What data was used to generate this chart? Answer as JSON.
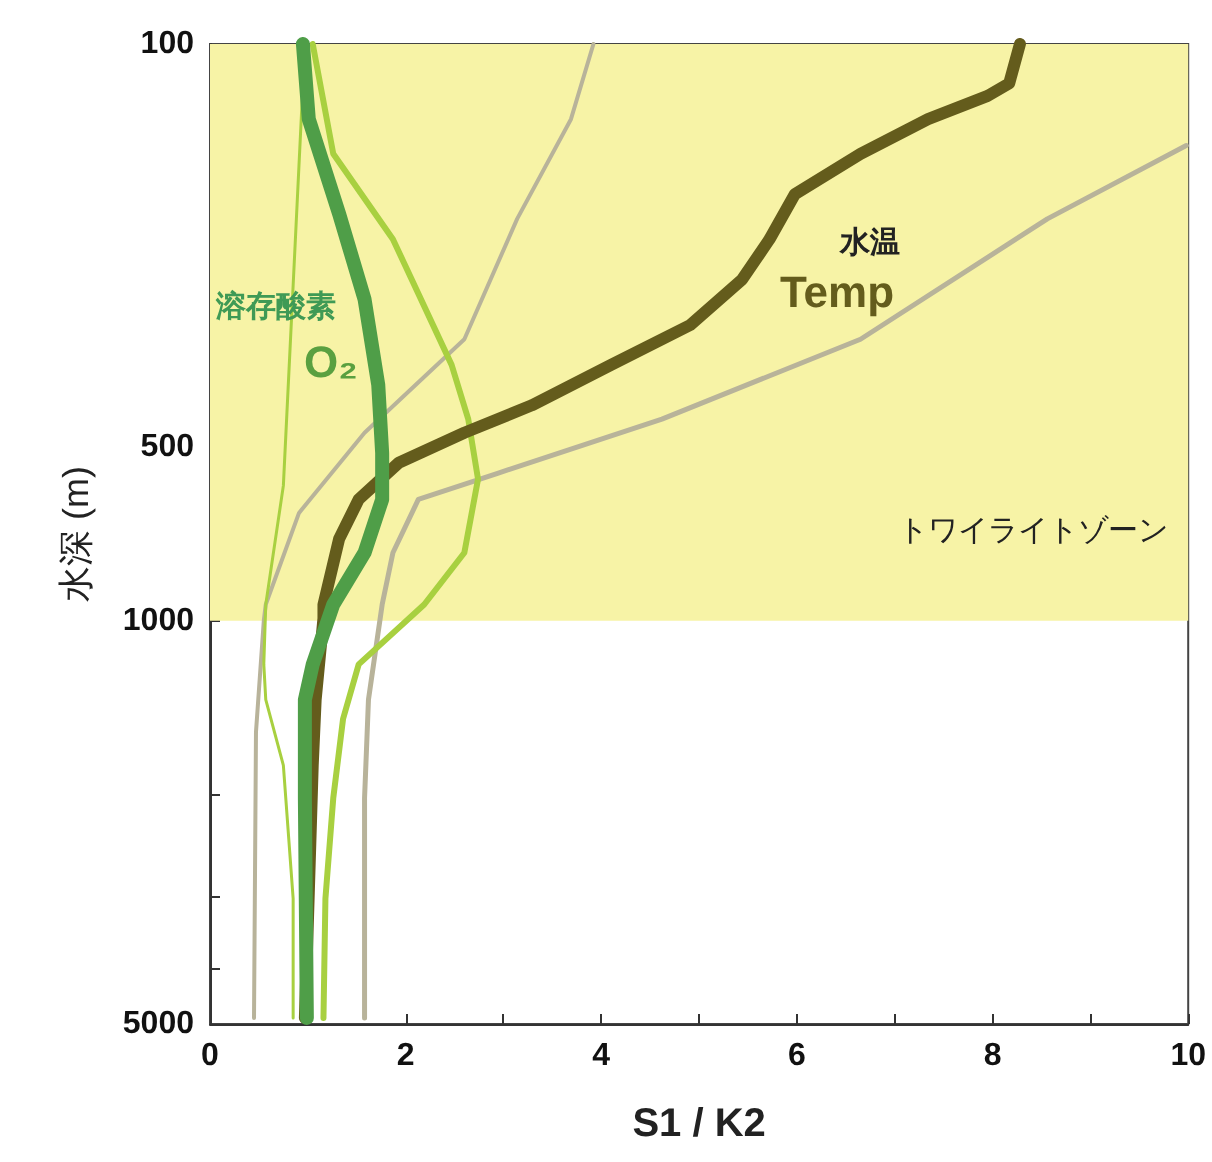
{
  "chart_data": {
    "type": "line",
    "xlabel": "S1 / K2",
    "ylabel": "水深 (m)",
    "xlim": [
      0,
      10
    ],
    "xticks": [
      0,
      {
        "value": 1,
        "label": null
      },
      2,
      {
        "value": 3,
        "label": null
      },
      4,
      {
        "value": 5,
        "label": null
      },
      6,
      {
        "value": 7,
        "label": null
      },
      8,
      {
        "value": 9,
        "label": null
      },
      10
    ],
    "ylim": [
      5000,
      100
    ],
    "log": "y",
    "yticks": [
      100,
      {
        "value": 200,
        "label": null
      },
      {
        "value": 300,
        "label": null
      },
      {
        "value": 400,
        "label": null
      },
      500,
      {
        "value": 600,
        "label": null
      },
      {
        "value": 700,
        "label": null
      },
      {
        "value": 800,
        "label": null
      },
      {
        "value": 900,
        "label": null
      },
      1000,
      {
        "value": 2000,
        "label": null
      },
      {
        "value": 3000,
        "label": null
      },
      {
        "value": 4000,
        "label": null
      },
      5000
    ],
    "grid": false,
    "marker": "none",
    "line_style": "solid",
    "bands": [
      {
        "axis": "y",
        "from": 100,
        "to": 1000,
        "label": "トワイライトゾーン",
        "color": "#f7f3a6"
      }
    ],
    "series": [
      {
        "color": "#b8b39a",
        "x": [
          3.92,
          3.69,
          3.14,
          2.6,
          1.58,
          0.91,
          0.57,
          0.55,
          0.47,
          0.45
        ],
        "values": [
          100,
          135,
          201,
          325,
          472,
          650,
          937,
          1000,
          1560,
          4880
        ]
      },
      {
        "color": "#b8b39a",
        "x": [
          9.98,
          8.56,
          6.65,
          4.62,
          2.94,
          2.13,
          1.87,
          1.76,
          1.62,
          1.58,
          1.58
        ],
        "values": [
          150,
          201,
          325,
          447,
          555,
          616,
          762,
          937,
          1370,
          2030,
          4880
        ]
      },
      {
        "color": "#a8d040",
        "x": [
          0.97,
          0.85,
          0.75,
          0.57,
          0.55,
          0.57,
          0.75,
          0.85,
          0.85
        ],
        "values": [
          100,
          262,
          583,
          937,
          1190,
          1370,
          1780,
          3030,
          4880
        ]
      },
      {
        "color": "#a8d040",
        "x": [
          1.05,
          1.26,
          1.87,
          2.47,
          2.64,
          2.74,
          2.6,
          2.19,
          1.52,
          1.36,
          1.26,
          1.18,
          1.16
        ],
        "values": [
          100,
          155,
          218,
          360,
          447,
          568,
          762,
          937,
          1190,
          1480,
          2030,
          3030,
          4880
        ]
      },
      {
        "color": "#645c1c",
        "x": [
          8.28,
          8.17,
          7.95,
          7.34,
          6.65,
          5.98,
          5.72,
          5.44,
          4.91,
          4.1,
          3.29,
          2.6,
          1.93,
          1.52,
          1.32,
          1.16,
          1.16,
          1.08,
          1.05,
          1.01,
          0.97
        ],
        "values": [
          100,
          117,
          123,
          135,
          155,
          182,
          218,
          256,
          307,
          360,
          423,
          472,
          532,
          616,
          721,
          937,
          990,
          1370,
          1780,
          2960,
          4880
        ]
      },
      {
        "color": "#4f9e48",
        "x": [
          0.95,
          1.01,
          1.32,
          1.58,
          1.72,
          1.76,
          1.76,
          1.58,
          1.26,
          1.05,
          0.97,
          0.97,
          0.99
        ],
        "values": [
          100,
          135,
          197,
          277,
          390,
          512,
          616,
          762,
          937,
          1190,
          1370,
          2030,
          4880
        ]
      }
    ],
    "annotations": [
      "溶存酸素",
      "O₂",
      "水温",
      "Temp"
    ]
  }
}
